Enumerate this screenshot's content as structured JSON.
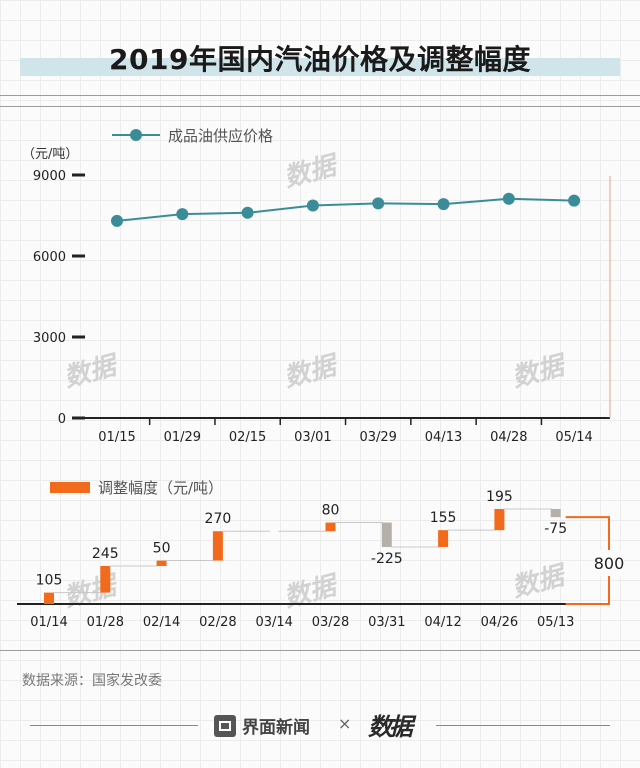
{
  "title": "2019年国内汽油价格及调整幅度",
  "source": "数据来源：国家发改委",
  "footer": {
    "brand": "界面新闻",
    "separator": "×",
    "partner": "数据"
  },
  "watermark": "数据",
  "colors": {
    "line": "#3a8d98",
    "bar_up": "#f26b1d",
    "bar_down": "#b5b0aa",
    "bracket": "#f26b1d",
    "title_band": "#cfe5ea"
  },
  "chart_data": [
    {
      "type": "line",
      "unit_label": "（元/吨）",
      "legend": "成品油供应价格",
      "categories": [
        "01/15",
        "01/29",
        "02/15",
        "03/01",
        "03/29",
        "04/13",
        "04/28",
        "05/14"
      ],
      "values": [
        7300,
        7550,
        7600,
        7870,
        7950,
        7920,
        8120,
        8050
      ],
      "yticks": [
        0,
        3000,
        6000,
        9000
      ],
      "ylim": [
        0,
        9000
      ],
      "legend_position": "top-left"
    },
    {
      "type": "bar",
      "subtype": "waterfall",
      "legend": "调整幅度（元/吨）",
      "categories": [
        "01/14",
        "01/28",
        "02/14",
        "02/28",
        "03/14",
        "03/28",
        "03/31",
        "04/12",
        "04/26",
        "05/13"
      ],
      "values": [
        105,
        245,
        50,
        270,
        0,
        80,
        -225,
        155,
        195,
        -75
      ],
      "labels": [
        "105",
        "245",
        "50",
        "270",
        "",
        "80",
        "-225",
        "155",
        "195",
        "-75"
      ],
      "total_label": "800",
      "legend_position": "top-left"
    }
  ]
}
